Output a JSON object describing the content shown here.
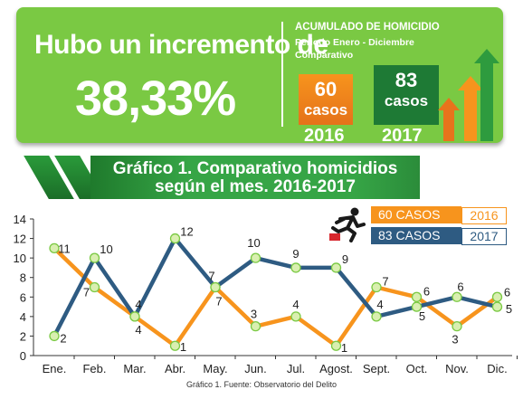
{
  "banner": {
    "headline": "Hubo un incremento de",
    "percent": "38,33%",
    "acc_title": "ACUMULADO DE HOMICIDIO",
    "acc_sub1": "Periodo Enero - Diciembre",
    "acc_sub2": "Comparativo",
    "box2016": {
      "num": "60",
      "casos": "casos",
      "year": "2016",
      "color": "#f7941d"
    },
    "box2017": {
      "num": "83",
      "casos": "casos",
      "year": "2017",
      "color": "#1e7a35"
    }
  },
  "ribbon": {
    "line1": "Gráfico 1. Comparativo homicidios",
    "line2": "según el mes. 2016-2017"
  },
  "legend": [
    {
      "label": "60 CASOS",
      "year": "2016",
      "color": "#f7941d"
    },
    {
      "label": "83  CASOS",
      "year": "2017",
      "color": "#2e5b82"
    }
  ],
  "caption": "Gráfico 1. Fuente: Observatorio del Delito",
  "chart_data": {
    "type": "line",
    "categories": [
      "Ene.",
      "Feb.",
      "Mar.",
      "Abr.",
      "May.",
      "Jun.",
      "Jul.",
      "Agost.",
      "Sept.",
      "Oct.",
      "Nov.",
      "Dic."
    ],
    "series": [
      {
        "name": "2016",
        "color": "#f7941d",
        "values": [
          11,
          7,
          4,
          1,
          7,
          3,
          4,
          1,
          7,
          6,
          3,
          6
        ]
      },
      {
        "name": "2017",
        "color": "#2e5b82",
        "values": [
          2,
          10,
          4,
          12,
          7,
          10,
          9,
          9,
          4,
          5,
          6,
          5
        ]
      }
    ],
    "yticks": [
      "0",
      "2",
      "4",
      "6",
      "8",
      "10",
      "12",
      "14"
    ],
    "ylim": [
      0,
      14
    ],
    "grid": false
  }
}
